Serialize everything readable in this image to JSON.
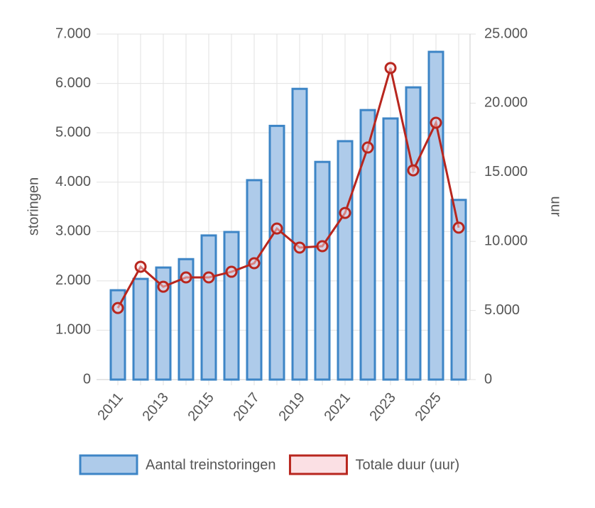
{
  "chart_data": {
    "type": "bar",
    "categories": [
      "2011",
      null,
      "2013",
      null,
      "2015",
      null,
      "2017",
      null,
      "2019",
      null,
      "2021",
      null,
      "2023",
      null,
      "2025",
      null
    ],
    "series": [
      {
        "name": "Aantal treinstoringen",
        "type": "bar",
        "color": "#3d85c6",
        "fill": "#aecbea",
        "values": [
          1810,
          2040,
          2270,
          2440,
          2920,
          2990,
          4040,
          5140,
          5890,
          4410,
          4830,
          5460,
          5290,
          5920,
          6640,
          3640
        ]
      },
      {
        "name": "Totale duur (uur)",
        "type": "line",
        "axis": "y2",
        "color": "#b8261e",
        "fill": "#fbe0e4",
        "values": [
          5180,
          8160,
          6720,
          7390,
          7390,
          7800,
          8420,
          10930,
          9550,
          9650,
          12060,
          16790,
          22540,
          15140,
          18580,
          10990
        ]
      }
    ],
    "ylabel": "storingen",
    "y2label": "uur",
    "ylim": [
      0,
      7000
    ],
    "yticks": [
      0,
      {
        "value": 1000,
        "label": "1.000"
      },
      {
        "value": 2000,
        "label": "2.000"
      },
      {
        "value": 3000,
        "label": "3.000"
      },
      {
        "value": 4000,
        "label": "4.000"
      },
      {
        "value": 5000,
        "label": "5.000"
      },
      {
        "value": 6000,
        "label": "6.000"
      },
      {
        "value": 7000,
        "label": "7.000"
      }
    ],
    "y2lim": [
      0,
      25000
    ],
    "y2ticks": [
      0,
      {
        "value": 5000,
        "label": "5.000"
      },
      {
        "value": 10000,
        "label": "10.000"
      },
      {
        "value": 15000,
        "label": "15.000"
      },
      {
        "value": 20000,
        "label": "20.000"
      },
      {
        "value": 25000,
        "label": "25.000"
      }
    ],
    "grid": true,
    "legend": "bottom"
  }
}
